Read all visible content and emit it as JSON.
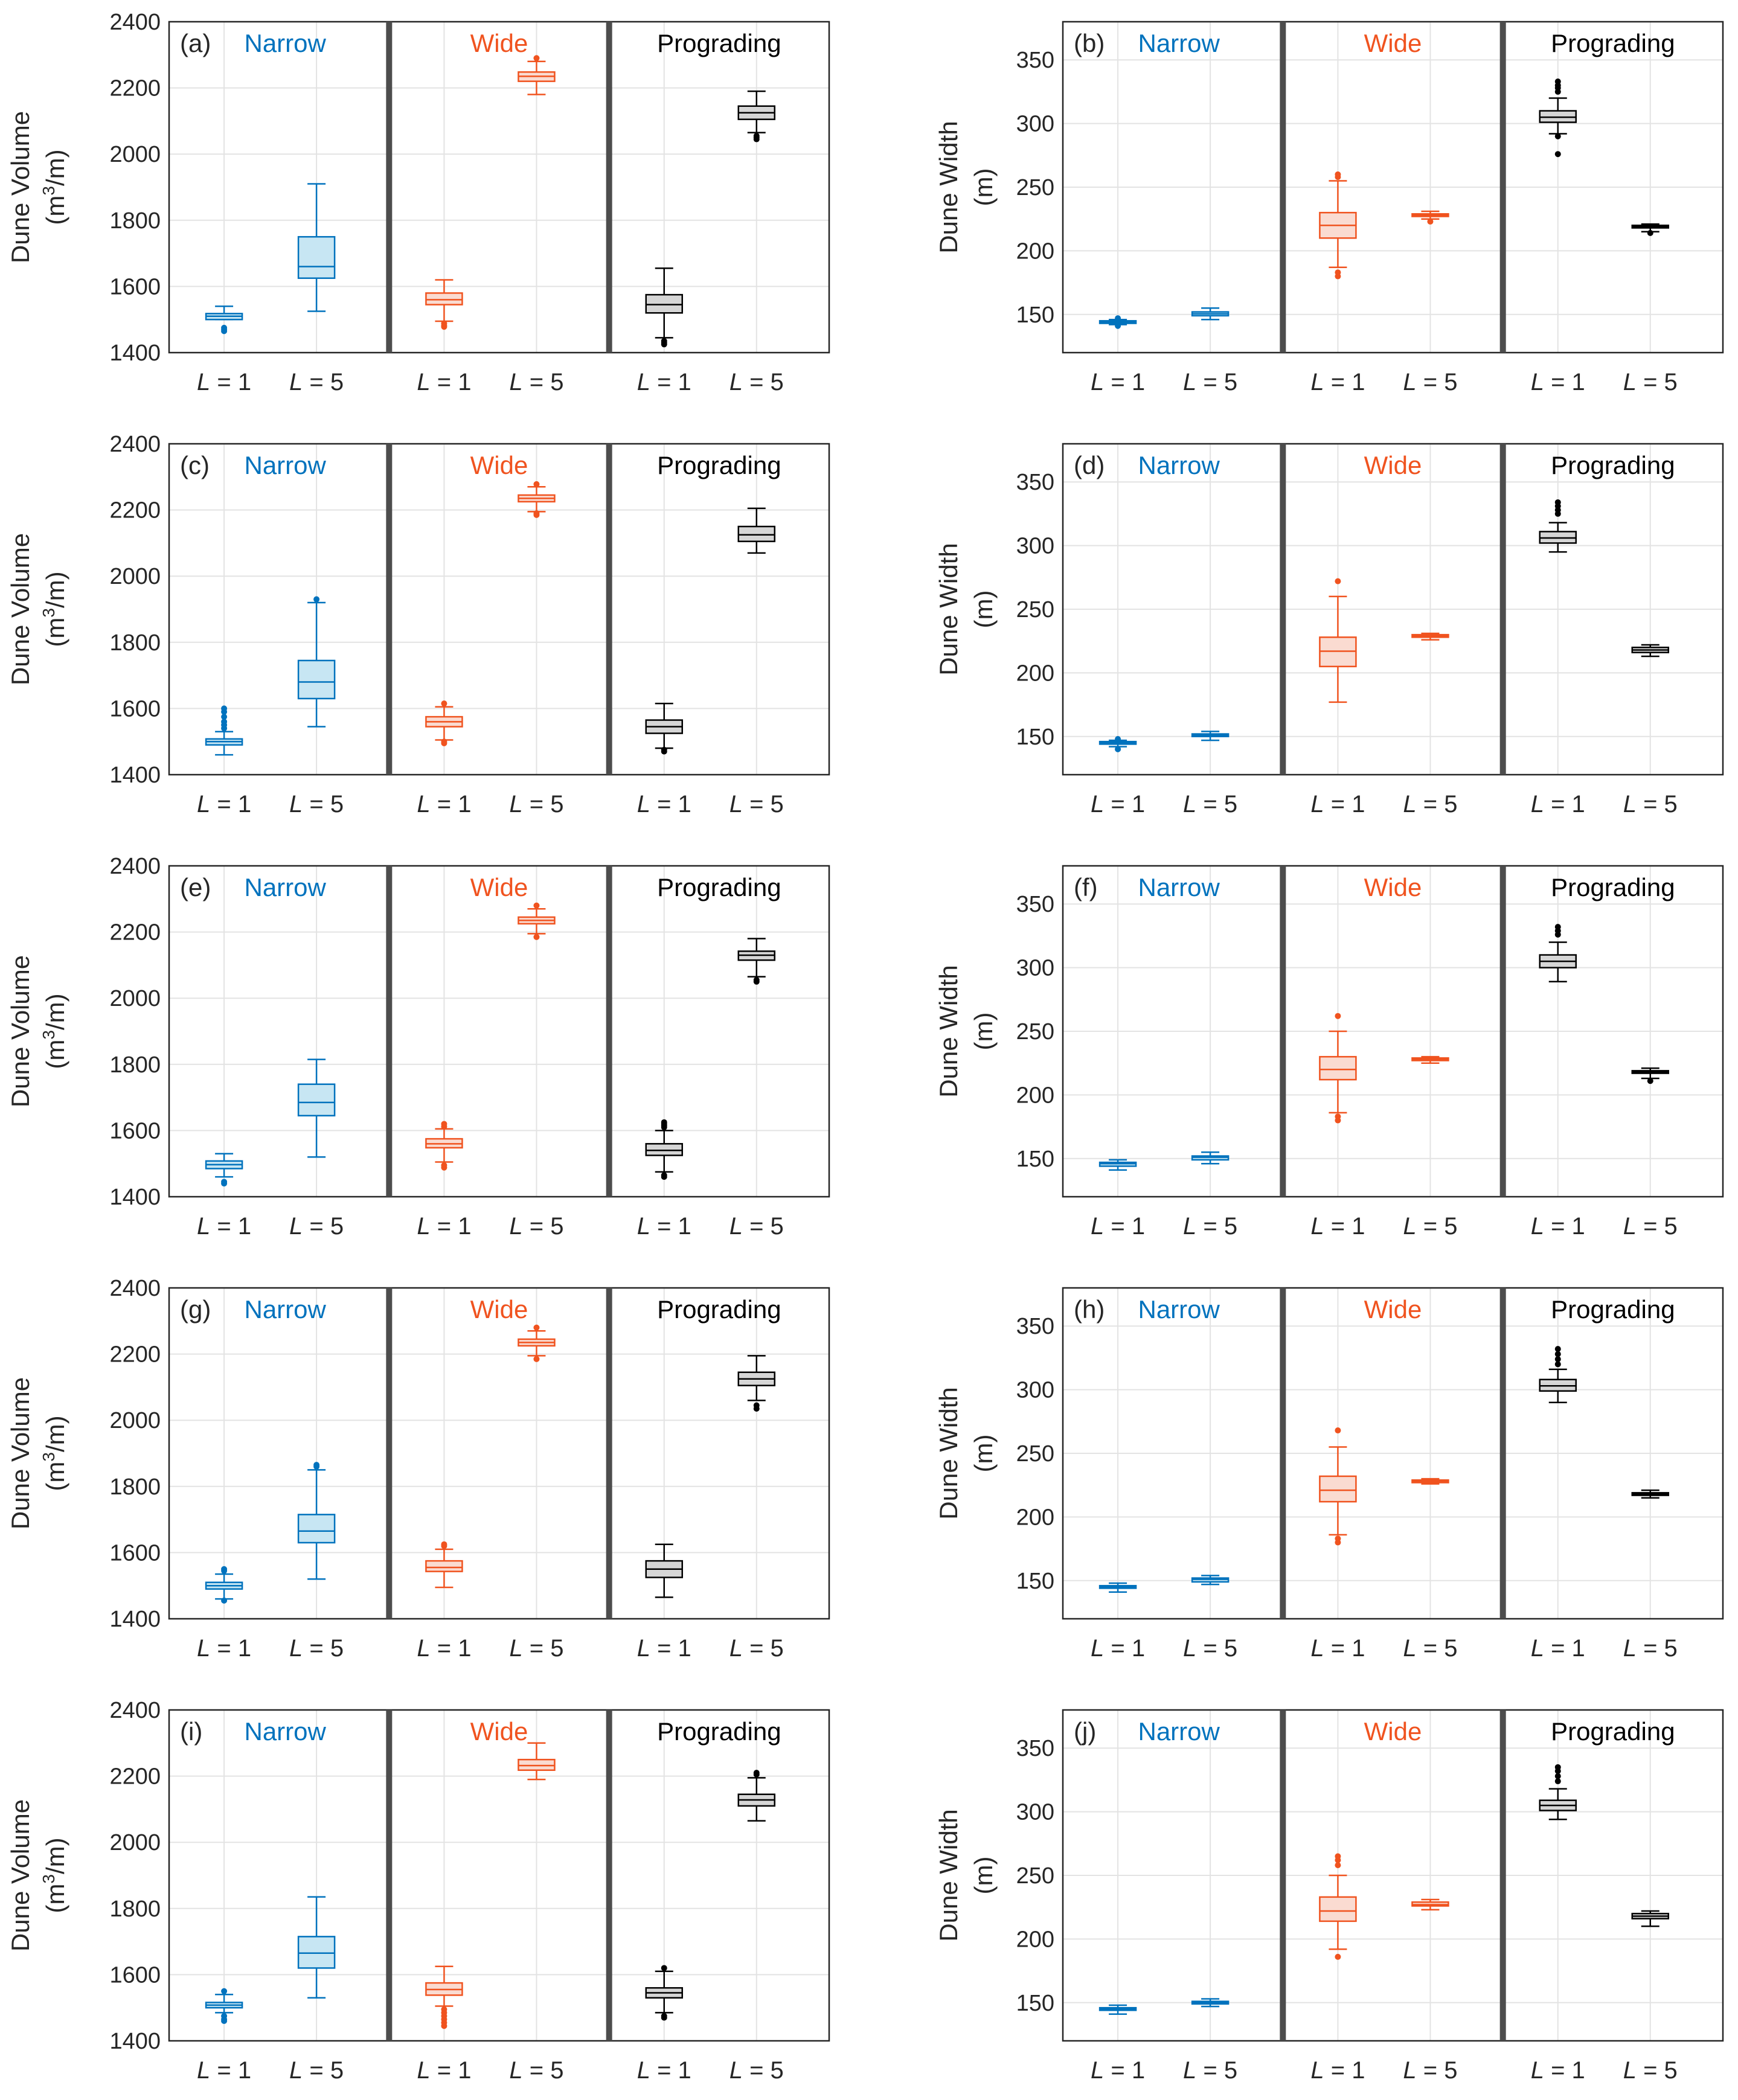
{
  "figure": {
    "scenarios": [
      {
        "name": "Narrow",
        "color": "#0072BD",
        "fill": "#c7e6f3"
      },
      {
        "name": "Wide",
        "color": "#F0531F",
        "fill": "#fadbd1"
      },
      {
        "name": "Prograding",
        "color": "#000000",
        "fill": "#d6d6d6"
      }
    ],
    "category_var": "L",
    "category_eq": " = ",
    "category_vals": [
      "1",
      "5"
    ]
  },
  "chart_data": [
    {
      "type": "box",
      "label": "(a)",
      "metric": "volume",
      "ylabel_line1": "Dune Volume",
      "ylabel_line2": "(m3/m)",
      "ylim": [
        1400,
        2400
      ],
      "yticks": [
        "1400",
        "1600",
        "1800",
        "2000",
        "2200",
        "2400"
      ],
      "boxes": [
        {
          "lw": 1500,
          "q1": 1500,
          "med": 1510,
          "q3": 1518,
          "uw": 1540,
          "out": [
            1465,
            1470,
            1475
          ]
        },
        {
          "lw": 1525,
          "q1": 1625,
          "med": 1660,
          "q3": 1750,
          "uw": 1910,
          "out": []
        },
        {
          "lw": 1495,
          "q1": 1545,
          "med": 1560,
          "q3": 1580,
          "uw": 1620,
          "out": [
            1478,
            1482,
            1488
          ]
        },
        {
          "lw": 2180,
          "q1": 2220,
          "med": 2235,
          "q3": 2248,
          "uw": 2280,
          "out": [
            2290
          ]
        },
        {
          "lw": 1445,
          "q1": 1520,
          "med": 1545,
          "q3": 1575,
          "uw": 1655,
          "out": [
            1425,
            1430,
            1435
          ]
        },
        {
          "lw": 2065,
          "q1": 2105,
          "med": 2125,
          "q3": 2145,
          "uw": 2190,
          "out": [
            2045,
            2050,
            2055
          ]
        }
      ]
    },
    {
      "type": "box",
      "label": "(b)",
      "metric": "width",
      "ylabel_line1": "Dune Width",
      "ylabel_line2": "(m)",
      "ylim": [
        120,
        380
      ],
      "yticks": [
        "150",
        "200",
        "250",
        "300",
        "350"
      ],
      "boxes": [
        {
          "lw": 142,
          "q1": 143,
          "med": 144,
          "q3": 145,
          "uw": 146,
          "out": [
            141,
            147
          ]
        },
        {
          "lw": 146,
          "q1": 149,
          "med": 150.5,
          "q3": 152,
          "uw": 155,
          "out": []
        },
        {
          "lw": 187,
          "q1": 210,
          "med": 220,
          "q3": 230,
          "uw": 255,
          "out": [
            180,
            183,
            258,
            260
          ]
        },
        {
          "lw": 225,
          "q1": 227,
          "med": 228,
          "q3": 229,
          "uw": 231,
          "out": [
            223
          ]
        },
        {
          "lw": 292,
          "q1": 301,
          "med": 305,
          "q3": 310,
          "uw": 320,
          "out": [
            276,
            290,
            325,
            328,
            330,
            333
          ]
        },
        {
          "lw": 215,
          "q1": 218,
          "med": 219,
          "q3": 220,
          "uw": 221,
          "out": [
            214
          ]
        }
      ]
    },
    {
      "type": "box",
      "label": "(c)",
      "metric": "volume",
      "ylabel_line1": "Dune Volume",
      "ylabel_line2": "(m3/m)",
      "ylim": [
        1400,
        2400
      ],
      "yticks": [
        "1400",
        "1600",
        "1800",
        "2000",
        "2200",
        "2400"
      ],
      "boxes": [
        {
          "lw": 1460,
          "q1": 1490,
          "med": 1500,
          "q3": 1508,
          "uw": 1530,
          "out": [
            1540,
            1550,
            1560,
            1575,
            1590,
            1600
          ]
        },
        {
          "lw": 1545,
          "q1": 1630,
          "med": 1680,
          "q3": 1745,
          "uw": 1920,
          "out": [
            1930
          ]
        },
        {
          "lw": 1505,
          "q1": 1545,
          "med": 1560,
          "q3": 1575,
          "uw": 1605,
          "out": [
            1495,
            1500,
            1615
          ]
        },
        {
          "lw": 2195,
          "q1": 2225,
          "med": 2235,
          "q3": 2245,
          "uw": 2270,
          "out": [
            2185,
            2190,
            2278
          ]
        },
        {
          "lw": 1480,
          "q1": 1525,
          "med": 1545,
          "q3": 1565,
          "uw": 1615,
          "out": [
            1470,
            1475
          ]
        },
        {
          "lw": 2070,
          "q1": 2105,
          "med": 2125,
          "q3": 2150,
          "uw": 2205,
          "out": []
        }
      ]
    },
    {
      "type": "box",
      "label": "(d)",
      "metric": "width",
      "ylabel_line1": "Dune Width",
      "ylabel_line2": "(m)",
      "ylim": [
        120,
        380
      ],
      "yticks": [
        "150",
        "200",
        "250",
        "300",
        "350"
      ],
      "boxes": [
        {
          "lw": 142,
          "q1": 144,
          "med": 145,
          "q3": 146,
          "uw": 147,
          "out": [
            140,
            148
          ]
        },
        {
          "lw": 147,
          "q1": 150,
          "med": 151,
          "q3": 152,
          "uw": 154,
          "out": []
        },
        {
          "lw": 177,
          "q1": 205,
          "med": 217,
          "q3": 228,
          "uw": 260,
          "out": [
            272
          ]
        },
        {
          "lw": 226,
          "q1": 228,
          "med": 229,
          "q3": 230,
          "uw": 231,
          "out": []
        },
        {
          "lw": 295,
          "q1": 302,
          "med": 306,
          "q3": 311,
          "uw": 318,
          "out": [
            325,
            328,
            331,
            334
          ]
        },
        {
          "lw": 213,
          "q1": 216,
          "med": 218,
          "q3": 220,
          "uw": 222,
          "out": []
        }
      ]
    },
    {
      "type": "box",
      "label": "(e)",
      "metric": "volume",
      "ylabel_line1": "Dune Volume",
      "ylabel_line2": "(m3/m)",
      "ylim": [
        1400,
        2400
      ],
      "yticks": [
        "1400",
        "1600",
        "1800",
        "2000",
        "2200",
        "2400"
      ],
      "boxes": [
        {
          "lw": 1460,
          "q1": 1485,
          "med": 1497,
          "q3": 1508,
          "uw": 1530,
          "out": [
            1440,
            1445
          ]
        },
        {
          "lw": 1520,
          "q1": 1645,
          "med": 1685,
          "q3": 1740,
          "uw": 1815,
          "out": []
        },
        {
          "lw": 1505,
          "q1": 1548,
          "med": 1560,
          "q3": 1575,
          "uw": 1605,
          "out": [
            1488,
            1495,
            1612,
            1620
          ]
        },
        {
          "lw": 2195,
          "q1": 2225,
          "med": 2235,
          "q3": 2245,
          "uw": 2270,
          "out": [
            2185,
            2280
          ]
        },
        {
          "lw": 1475,
          "q1": 1525,
          "med": 1540,
          "q3": 1560,
          "uw": 1600,
          "out": [
            1460,
            1465,
            1610,
            1615,
            1620,
            1625
          ]
        },
        {
          "lw": 2065,
          "q1": 2115,
          "med": 2130,
          "q3": 2142,
          "uw": 2180,
          "out": [
            2050,
            2055
          ]
        }
      ]
    },
    {
      "type": "box",
      "label": "(f)",
      "metric": "width",
      "ylabel_line1": "Dune Width",
      "ylabel_line2": "(m)",
      "ylim": [
        120,
        380
      ],
      "yticks": [
        "150",
        "200",
        "250",
        "300",
        "350"
      ],
      "boxes": [
        {
          "lw": 141,
          "q1": 144,
          "med": 146,
          "q3": 147,
          "uw": 149,
          "out": []
        },
        {
          "lw": 146,
          "q1": 149,
          "med": 151,
          "q3": 152,
          "uw": 155,
          "out": []
        },
        {
          "lw": 186,
          "q1": 212,
          "med": 220,
          "q3": 230,
          "uw": 250,
          "out": [
            180,
            183,
            262
          ]
        },
        {
          "lw": 225,
          "q1": 227,
          "med": 228,
          "q3": 229,
          "uw": 230,
          "out": []
        },
        {
          "lw": 289,
          "q1": 300,
          "med": 305,
          "q3": 310,
          "uw": 320,
          "out": [
            326,
            329,
            332
          ]
        },
        {
          "lw": 213,
          "q1": 217,
          "med": 218,
          "q3": 219,
          "uw": 221,
          "out": [
            211
          ]
        }
      ]
    },
    {
      "type": "box",
      "label": "(g)",
      "metric": "volume",
      "ylabel_line1": "Dune Volume",
      "ylabel_line2": "(m3/m)",
      "ylim": [
        1400,
        2400
      ],
      "yticks": [
        "1400",
        "1600",
        "1800",
        "2000",
        "2200",
        "2400"
      ],
      "boxes": [
        {
          "lw": 1460,
          "q1": 1490,
          "med": 1500,
          "q3": 1510,
          "uw": 1535,
          "out": [
            1455,
            1545,
            1550
          ]
        },
        {
          "lw": 1520,
          "q1": 1630,
          "med": 1665,
          "q3": 1715,
          "uw": 1850,
          "out": [
            1860,
            1865
          ]
        },
        {
          "lw": 1495,
          "q1": 1543,
          "med": 1555,
          "q3": 1575,
          "uw": 1610,
          "out": [
            1620,
            1625
          ]
        },
        {
          "lw": 2195,
          "q1": 2225,
          "med": 2235,
          "q3": 2245,
          "uw": 2270,
          "out": [
            2185,
            2280
          ]
        },
        {
          "lw": 1465,
          "q1": 1525,
          "med": 1550,
          "q3": 1575,
          "uw": 1625,
          "out": []
        },
        {
          "lw": 2060,
          "q1": 2105,
          "med": 2125,
          "q3": 2145,
          "uw": 2195,
          "out": [
            2035,
            2045
          ]
        }
      ]
    },
    {
      "type": "box",
      "label": "(h)",
      "metric": "width",
      "ylabel_line1": "Dune Width",
      "ylabel_line2": "(m)",
      "ylim": [
        120,
        380
      ],
      "yticks": [
        "150",
        "200",
        "250",
        "300",
        "350"
      ],
      "boxes": [
        {
          "lw": 141,
          "q1": 144,
          "med": 145,
          "q3": 146,
          "uw": 148,
          "out": []
        },
        {
          "lw": 147,
          "q1": 149,
          "med": 151,
          "q3": 152,
          "uw": 154,
          "out": []
        },
        {
          "lw": 186,
          "q1": 212,
          "med": 221,
          "q3": 232,
          "uw": 255,
          "out": [
            180,
            183,
            268
          ]
        },
        {
          "lw": 226,
          "q1": 227,
          "med": 228,
          "q3": 229,
          "uw": 230,
          "out": []
        },
        {
          "lw": 290,
          "q1": 299,
          "med": 303,
          "q3": 308,
          "uw": 316,
          "out": [
            320,
            324,
            328,
            332
          ]
        },
        {
          "lw": 215,
          "q1": 217,
          "med": 218,
          "q3": 219,
          "uw": 221,
          "out": []
        }
      ]
    },
    {
      "type": "box",
      "label": "(i)",
      "metric": "volume",
      "ylabel_line1": "Dune Volume",
      "ylabel_line2": "(m3/m)",
      "ylim": [
        1400,
        2400
      ],
      "yticks": [
        "1400",
        "1600",
        "1800",
        "2000",
        "2200",
        "2400"
      ],
      "boxes": [
        {
          "lw": 1485,
          "q1": 1500,
          "med": 1508,
          "q3": 1516,
          "uw": 1540,
          "out": [
            1460,
            1465,
            1475,
            1550
          ]
        },
        {
          "lw": 1530,
          "q1": 1620,
          "med": 1665,
          "q3": 1715,
          "uw": 1835,
          "out": []
        },
        {
          "lw": 1505,
          "q1": 1538,
          "med": 1555,
          "q3": 1575,
          "uw": 1625,
          "out": [
            1445,
            1455,
            1465,
            1475,
            1485,
            1495
          ]
        },
        {
          "lw": 2190,
          "q1": 2218,
          "med": 2232,
          "q3": 2250,
          "uw": 2300,
          "out": []
        },
        {
          "lw": 1485,
          "q1": 1530,
          "med": 1545,
          "q3": 1560,
          "uw": 1610,
          "out": [
            1470,
            1475,
            1620
          ]
        },
        {
          "lw": 2065,
          "q1": 2110,
          "med": 2128,
          "q3": 2145,
          "uw": 2195,
          "out": [
            2205,
            2210
          ]
        }
      ]
    },
    {
      "type": "box",
      "label": "(j)",
      "metric": "width",
      "ylabel_line1": "Dune Width",
      "ylabel_line2": "(m)",
      "ylim": [
        120,
        380
      ],
      "yticks": [
        "150",
        "200",
        "250",
        "300",
        "350"
      ],
      "boxes": [
        {
          "lw": 141,
          "q1": 144,
          "med": 145,
          "q3": 146,
          "uw": 148,
          "out": []
        },
        {
          "lw": 147,
          "q1": 149,
          "med": 150,
          "q3": 151,
          "uw": 153,
          "out": []
        },
        {
          "lw": 192,
          "q1": 214,
          "med": 222,
          "q3": 233,
          "uw": 250,
          "out": [
            186,
            258,
            262,
            265
          ]
        },
        {
          "lw": 223,
          "q1": 226,
          "med": 227,
          "q3": 229,
          "uw": 231,
          "out": []
        },
        {
          "lw": 294,
          "q1": 301,
          "med": 305,
          "q3": 309,
          "uw": 318,
          "out": [
            324,
            328,
            332,
            335
          ]
        },
        {
          "lw": 210,
          "q1": 216,
          "med": 218,
          "q3": 220,
          "uw": 222,
          "out": []
        }
      ]
    }
  ]
}
